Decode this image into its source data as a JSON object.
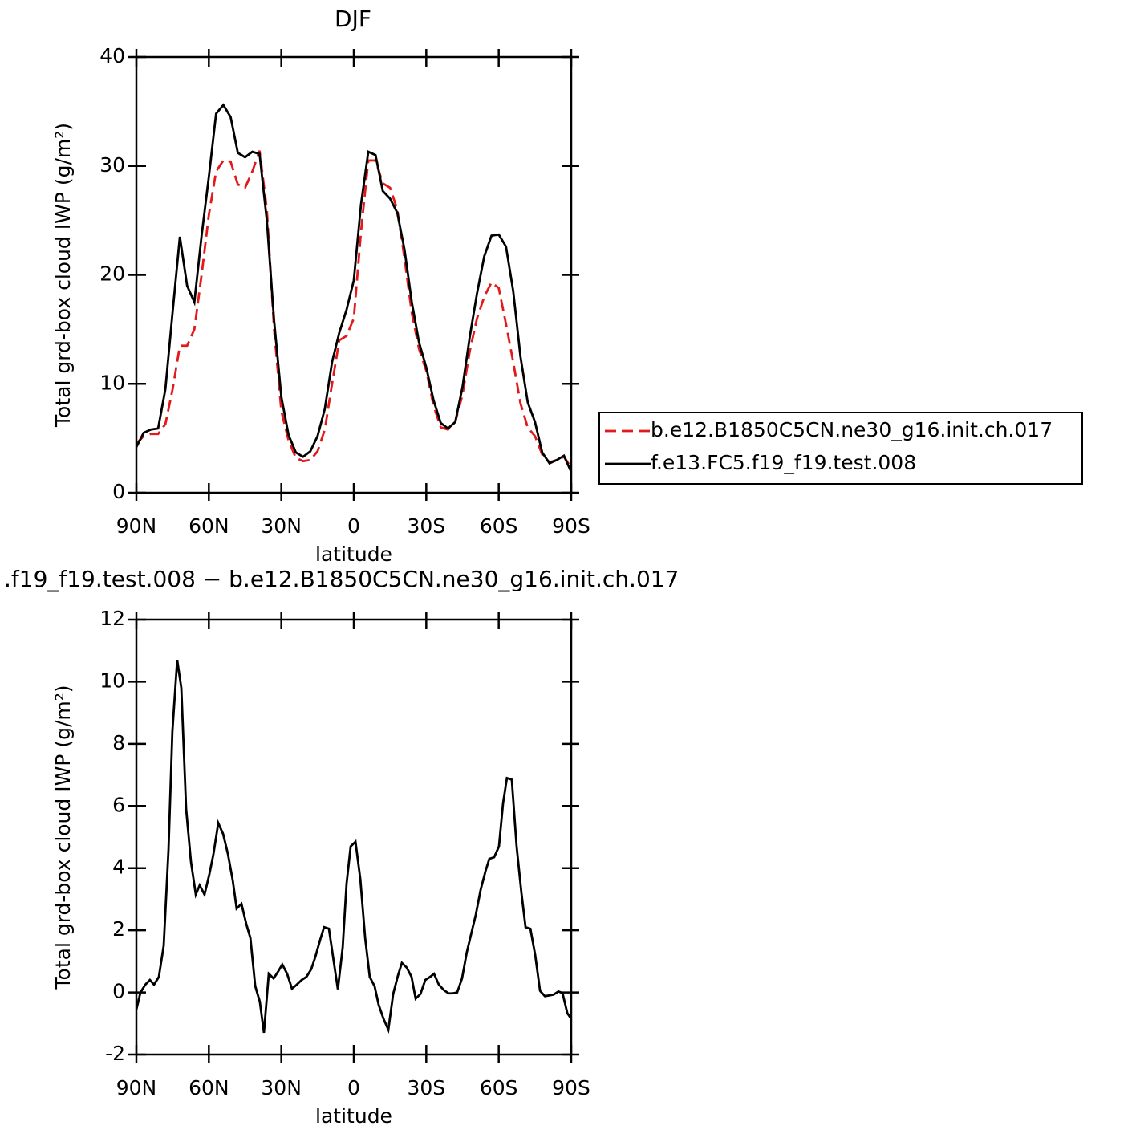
{
  "chart_data": [
    {
      "type": "line",
      "title": "DJF",
      "xlabel": "latitude",
      "ylabel": "Total grd-box cloud IWP (g/m²)",
      "x": [
        90,
        87,
        84,
        81,
        78,
        75,
        72,
        69,
        66,
        63,
        60,
        57,
        54,
        51,
        48,
        45,
        42,
        39,
        36,
        33,
        30,
        27,
        24,
        21,
        18,
        15,
        12,
        9,
        6,
        3,
        0,
        -3,
        -6,
        -9,
        -12,
        -15,
        -18,
        -21,
        -24,
        -27,
        -30,
        -33,
        -36,
        -39,
        -42,
        -45,
        -48,
        -51,
        -54,
        -57,
        -60,
        -63,
        -66,
        -69,
        -72,
        -75,
        -78,
        -81,
        -84,
        -87,
        -90
      ],
      "series": [
        {
          "name": "b.e12.B1850C5CN.ne30_g16.init.ch.017",
          "color": "#e31a1c",
          "dash": true,
          "values": [
            4.5,
            5.2,
            5.4,
            5.4,
            6.3,
            9.5,
            13.5,
            13.5,
            15,
            20,
            25.5,
            29.5,
            30.5,
            30.4,
            28.3,
            28,
            29.5,
            31.4,
            26,
            15,
            7.5,
            4.8,
            3.2,
            2.9,
            3,
            3.8,
            5.8,
            10,
            14,
            14.4,
            16,
            24,
            30.5,
            30.5,
            28.4,
            28,
            26,
            21.5,
            16.5,
            13.2,
            11.2,
            8,
            6,
            5.8,
            6.5,
            9,
            13,
            16,
            18,
            19.3,
            18.8,
            15.5,
            12,
            8.2,
            6,
            5.2,
            3.5,
            2.8,
            3,
            3.3,
            2.3
          ]
        },
        {
          "name": "f.e13.FC5.f19_f19.test.008",
          "color": "#000000",
          "dash": false,
          "values": [
            4.2,
            5.5,
            5.8,
            5.9,
            9.5,
            16.6,
            23.5,
            19,
            17.5,
            23.6,
            29,
            34.8,
            35.6,
            34.5,
            31.2,
            30.8,
            31.3,
            31.1,
            25,
            15.8,
            8.8,
            5.3,
            3.7,
            3.3,
            3.8,
            5.2,
            7.7,
            12,
            14.7,
            16.8,
            19.5,
            26.5,
            31.3,
            31,
            27.7,
            27,
            25.7,
            22.3,
            17.5,
            13.8,
            11.5,
            8.5,
            6.4,
            5.9,
            6.5,
            9.7,
            14.3,
            18.3,
            21.7,
            23.6,
            23.7,
            22.6,
            18.5,
            12.5,
            8.3,
            6.5,
            3.7,
            2.7,
            3,
            3.4,
            1.9
          ]
        }
      ],
      "xlim": [
        90,
        -90
      ],
      "xticks": [
        {
          "value": 90,
          "label": "90N"
        },
        {
          "value": 60,
          "label": "60N"
        },
        {
          "value": 30,
          "label": "30N"
        },
        0,
        {
          "value": -30,
          "label": "30S"
        },
        {
          "value": -60,
          "label": "60S"
        },
        {
          "value": -90,
          "label": "90S"
        }
      ],
      "ylim": [
        0,
        40
      ],
      "yticks": [
        0,
        10,
        20,
        30,
        40
      ],
      "legend": "right"
    },
    {
      "type": "line",
      "title": ".f19_f19.test.008 − b.e12.B1850C5CN.ne30_g16.init.ch.017",
      "xlabel": "latitude",
      "ylabel": "Total grd-box cloud IWP (g/m²)",
      "x": [
        90,
        88.3,
        86.3,
        84.4,
        82.7,
        80.7,
        78.7,
        76.7,
        75.1,
        73.1,
        71.4,
        69.4,
        67.4,
        65.4,
        63.8,
        61.8,
        59.8,
        58.1,
        56.1,
        54.1,
        52.1,
        50.1,
        48.5,
        46.5,
        44.5,
        42.8,
        40.8,
        38.9,
        37.2,
        35.2,
        33.2,
        31.5,
        29.6,
        27.6,
        25.6,
        23.6,
        21.6,
        19.6,
        17.6,
        15.9,
        13.9,
        12.3,
        10.3,
        8.6,
        6.6,
        4.6,
        3,
        1.3,
        -0.7,
        -2.7,
        -4.7,
        -6.6,
        -8.6,
        -10.3,
        -12.3,
        -14.3,
        -16.3,
        -18.3,
        -19.9,
        -21.9,
        -23.9,
        -25.6,
        -27.6,
        -29.6,
        -31.6,
        -33.2,
        -35.2,
        -37.2,
        -39.2,
        -40.9,
        -42.8,
        -44.8,
        -46.8,
        -48.8,
        -50.5,
        -52.5,
        -54.5,
        -56.1,
        -58.1,
        -60.1,
        -61.8,
        -63.4,
        -65.4,
        -67.4,
        -69.4,
        -71.1,
        -73.1,
        -75.1,
        -77.1,
        -79.1,
        -80.7,
        -82.7,
        -84.7,
        -86.4,
        -88.4,
        -90
      ],
      "series": [
        {
          "color": "#000000",
          "dash": false,
          "values": [
            -0.55,
            0,
            0.25,
            0.4,
            0.25,
            0.5,
            1.5,
            4.6,
            8.4,
            10.7,
            9.8,
            5.9,
            4.2,
            3.15,
            3.45,
            3.15,
            3.8,
            4.45,
            5.45,
            5.1,
            4.45,
            3.6,
            2.7,
            2.85,
            2.2,
            1.75,
            0.2,
            -0.3,
            -1.3,
            0.6,
            0.45,
            0.65,
            0.9,
            0.6,
            0.12,
            0.25,
            0.4,
            0.5,
            0.75,
            1.15,
            1.7,
            2.1,
            2.05,
            1.15,
            0.1,
            1.45,
            3.5,
            4.7,
            4.85,
            3.65,
            1.75,
            0.5,
            0.2,
            -0.4,
            -0.85,
            -1.2,
            -0.05,
            0.55,
            0.95,
            0.8,
            0.5,
            -0.2,
            -0.05,
            0.4,
            0.5,
            0.6,
            0.25,
            0.08,
            -0.03,
            -0.03,
            0,
            0.45,
            1.3,
            1.95,
            2.5,
            3.3,
            3.9,
            4.3,
            4.35,
            4.7,
            6.1,
            6.9,
            6.85,
            4.7,
            3.2,
            2.1,
            2.05,
            1.2,
            0.05,
            -0.12,
            -0.1,
            -0.07,
            0.03,
            -0.02,
            -0.67,
            -0.85
          ]
        }
      ],
      "xlim": [
        90,
        -90
      ],
      "xticks": [
        {
          "value": 90,
          "label": "90N"
        },
        {
          "value": 60,
          "label": "60N"
        },
        {
          "value": 30,
          "label": "30N"
        },
        0,
        {
          "value": -30,
          "label": "30S"
        },
        {
          "value": -60,
          "label": "60S"
        },
        {
          "value": -90,
          "label": "90S"
        }
      ],
      "ylim": [
        -2,
        12
      ],
      "yticks": [
        -2,
        0,
        2,
        4,
        6,
        8,
        10,
        12
      ]
    }
  ]
}
